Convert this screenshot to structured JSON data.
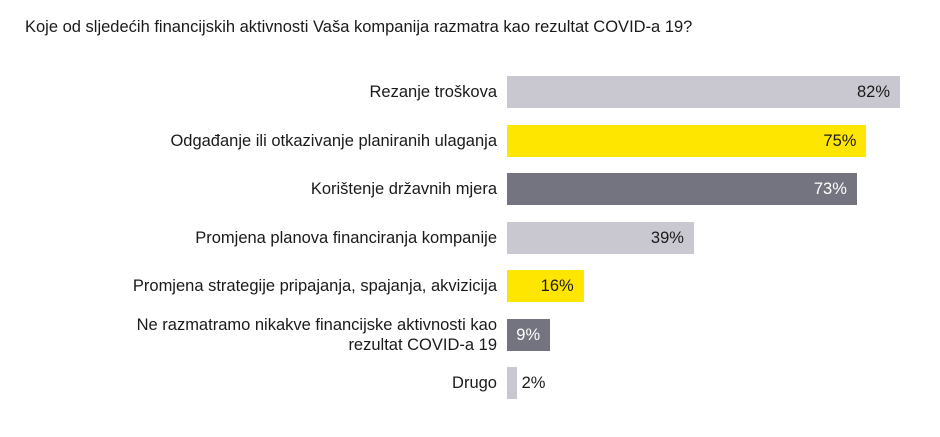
{
  "title": "Koje od sljedećih financijskih aktivnosti Vaša kompanija razmatra kao rezultat COVID-a 19?",
  "colors": {
    "light_gray": "#c9c8d1",
    "yellow": "#ffe600",
    "dark_gray": "#747480",
    "text_dark": "#1a1a1a",
    "text_light": "#ffffff"
  },
  "chart_data": {
    "type": "bar",
    "orientation": "horizontal",
    "title": "Koje od sljedećih financijskih aktivnosti Vaša kompanija razmatra kao rezultat COVID-a 19?",
    "xlabel": "",
    "ylabel": "",
    "xlim": [
      0,
      82
    ],
    "unit": "%",
    "grid": false,
    "legend": "none",
    "categories": [
      "Rezanje troškova",
      "Odgađanje ili otkazivanje planiranih ulaganja",
      "Korištenje državnih mjera",
      "Promjena planova financiranja kompanije",
      "Promjena strategije pripajanja, spajanja, akvizicija",
      "Ne razmatramo nikakve financijske aktivnosti kao rezultat COVID-a 19",
      "Drugo"
    ],
    "category_lines": [
      [
        "Rezanje troškova"
      ],
      [
        "Odgađanje ili otkazivanje planiranih ulaganja"
      ],
      [
        "Korištenje državnih mjera"
      ],
      [
        "Promjena planova financiranja kompanije"
      ],
      [
        "Promjena strategije pripajanja, spajanja, akvizicija"
      ],
      [
        "Ne razmatramo nikakve financijske aktivnosti kao",
        "rezultat COVID-a 19"
      ],
      [
        "Drugo"
      ]
    ],
    "values": [
      82,
      75,
      73,
      39,
      16,
      9,
      2
    ],
    "value_labels": [
      "82%",
      "75%",
      "73%",
      "39%",
      "16%",
      "9%",
      "2%"
    ],
    "bar_colors": [
      "#c9c8d1",
      "#ffe600",
      "#747480",
      "#c9c8d1",
      "#ffe600",
      "#747480",
      "#c9c8d1"
    ],
    "label_colors": [
      "#1a1a1a",
      "#1a1a1a",
      "#ffffff",
      "#1a1a1a",
      "#1a1a1a",
      "#ffffff",
      "#1a1a1a"
    ]
  }
}
